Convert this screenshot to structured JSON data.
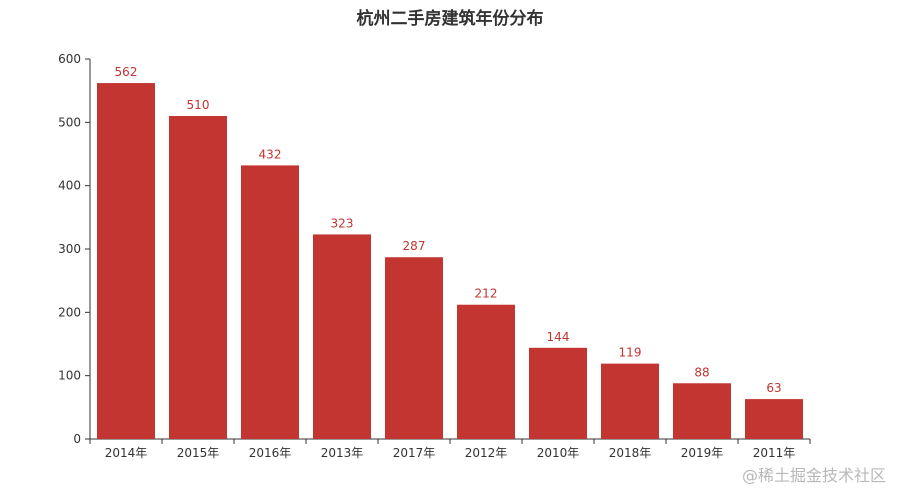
{
  "chart_data": {
    "type": "bar",
    "title": "杭州二手房建筑年份分布",
    "categories": [
      "2014年",
      "2015年",
      "2016年",
      "2013年",
      "2017年",
      "2012年",
      "2010年",
      "2018年",
      "2019年",
      "2011年"
    ],
    "values": [
      562,
      510,
      432,
      323,
      287,
      212,
      144,
      119,
      88,
      63
    ],
    "ylim": [
      0,
      600
    ],
    "yticks": [
      0,
      100,
      200,
      300,
      400,
      500,
      600
    ],
    "grid": false,
    "data_labels": true,
    "bar_color": "#c23531",
    "label_color": "#c23531",
    "axis_color": "#333333"
  },
  "watermark": "@稀土掘金技术社区"
}
